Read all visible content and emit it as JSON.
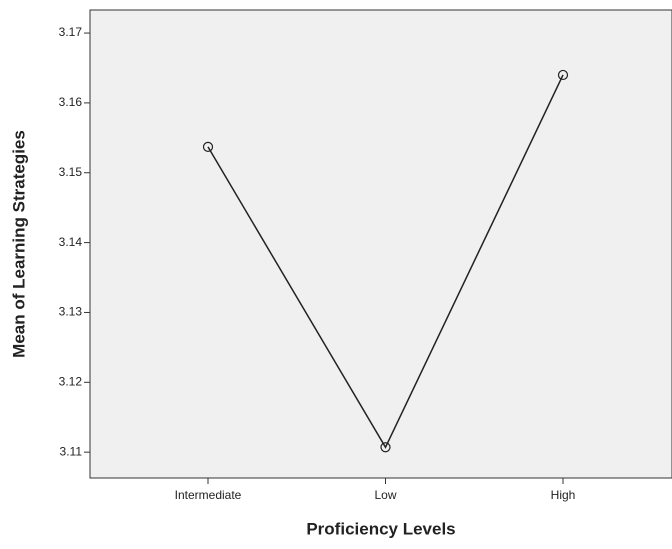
{
  "chart_data": {
    "type": "line",
    "x_label": "Proficiency Levels",
    "y_label": "Mean of Learning Strategies",
    "categories": [
      "Intermediate",
      "Low",
      "High"
    ],
    "values": [
      3.1537,
      3.1107,
      3.164
    ],
    "color": "#222222",
    "ylim": [
      3.1063,
      3.1733
    ],
    "yticks": [
      3.11,
      3.12,
      3.13,
      3.14,
      3.15,
      3.16,
      3.17
    ],
    "grid": false
  }
}
